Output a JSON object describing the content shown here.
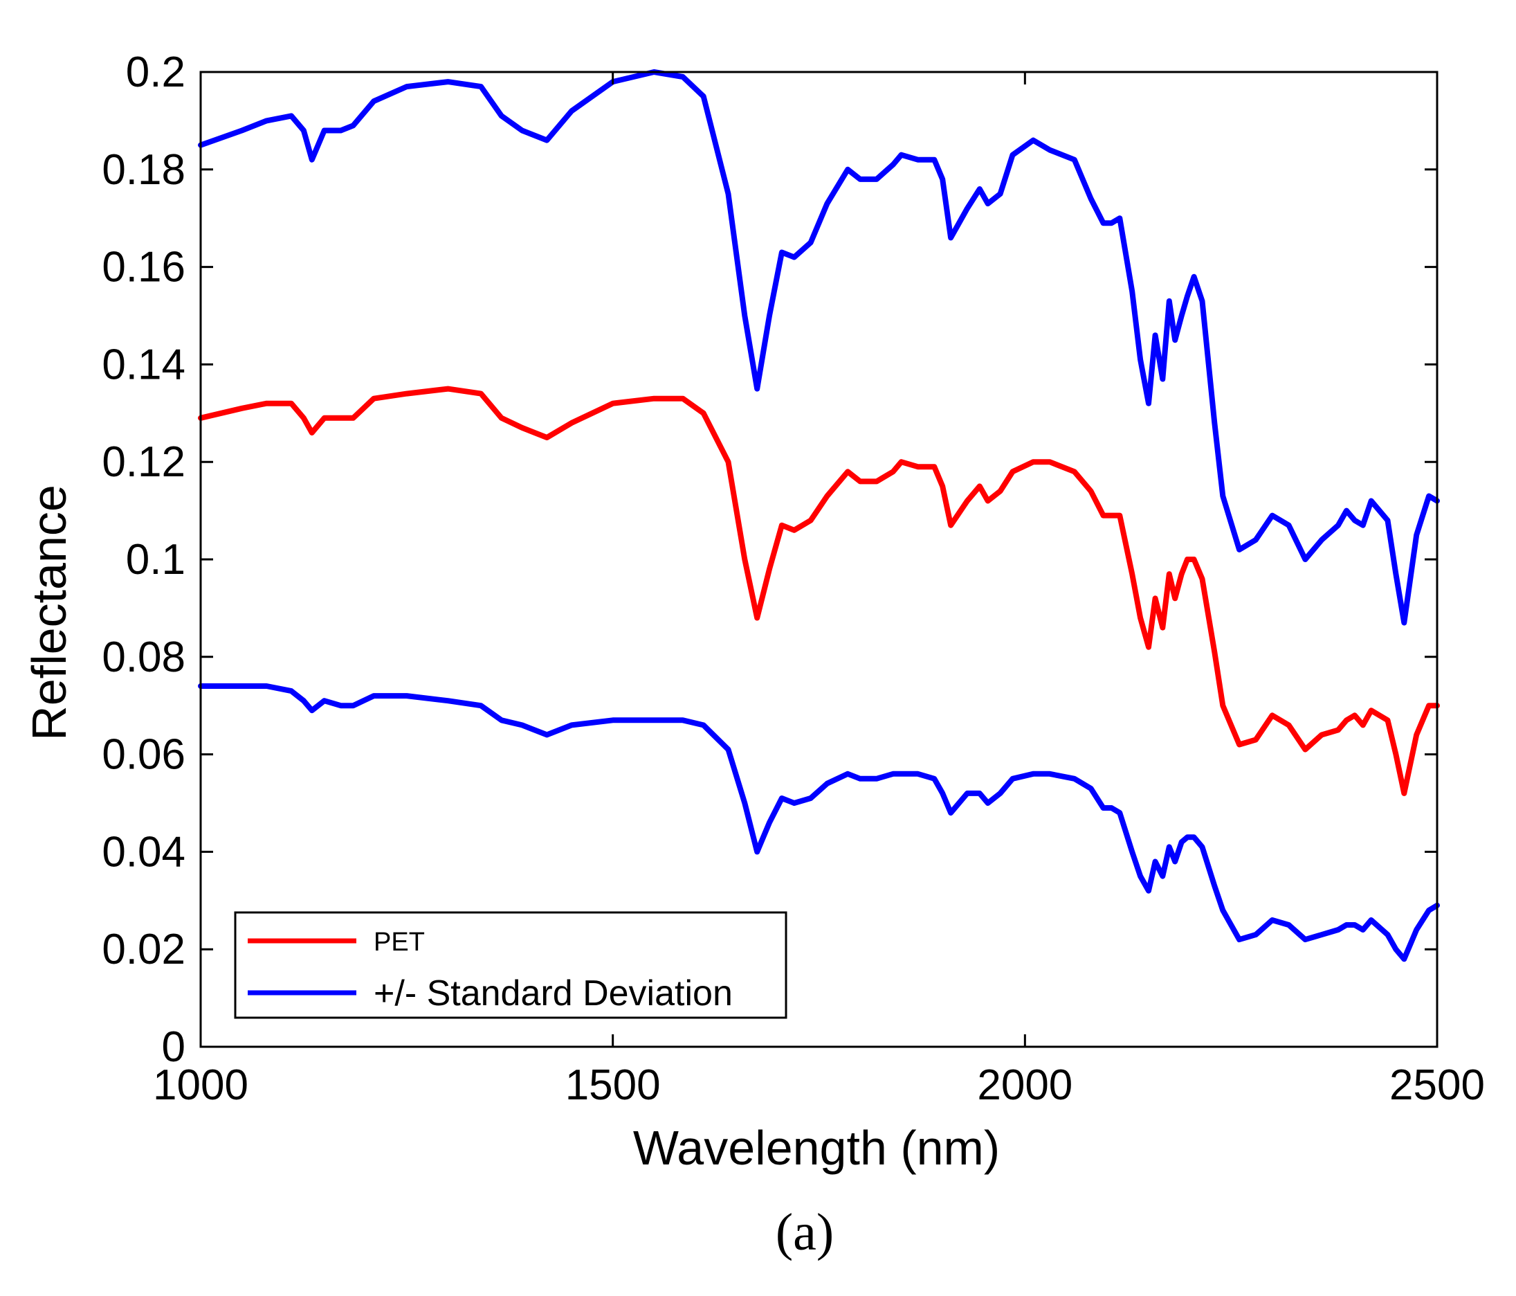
{
  "figure": {
    "caption": "(a)"
  },
  "chart_data": {
    "type": "line",
    "title": "",
    "xlabel": "Wavelength (nm)",
    "ylabel": "Reflectance",
    "xlim": [
      1000,
      2500
    ],
    "ylim": [
      0,
      0.2
    ],
    "xticks": [
      1000,
      1500,
      2000,
      2500
    ],
    "xtick_labels": [
      "1000",
      "1500",
      "2000",
      "2500"
    ],
    "yticks": [
      0,
      0.02,
      0.04,
      0.06,
      0.08,
      0.1,
      0.12,
      0.14,
      0.16,
      0.18,
      0.2
    ],
    "ytick_labels": [
      "0",
      "0.02",
      "0.04",
      "0.06",
      "0.08",
      "0.1",
      "0.12",
      "0.14",
      "0.16",
      "0.18",
      "0.2"
    ],
    "grid": false,
    "legend": {
      "position": "bottom-left",
      "entries": [
        {
          "label": "PET",
          "color": "#ff0000"
        },
        {
          "label": "+/- Standard Deviation",
          "color": "#0000ff"
        }
      ]
    },
    "series": [
      {
        "name": "+ Standard Deviation",
        "color": "#0000ff",
        "x": [
          1000,
          1050,
          1080,
          1110,
          1125,
          1135,
          1150,
          1170,
          1185,
          1210,
          1250,
          1300,
          1340,
          1365,
          1390,
          1420,
          1450,
          1500,
          1550,
          1585,
          1610,
          1640,
          1660,
          1675,
          1690,
          1705,
          1720,
          1740,
          1760,
          1785,
          1800,
          1820,
          1840,
          1850,
          1870,
          1890,
          1900,
          1910,
          1930,
          1945,
          1955,
          1970,
          1985,
          2010,
          2030,
          2060,
          2080,
          2095,
          2105,
          2115,
          2130,
          2140,
          2150,
          2158,
          2167,
          2175,
          2182,
          2190,
          2197,
          2205,
          2215,
          2230,
          2240,
          2260,
          2280,
          2300,
          2320,
          2340,
          2360,
          2380,
          2390,
          2400,
          2410,
          2420,
          2440,
          2450,
          2460,
          2475,
          2490,
          2500
        ],
        "y": [
          0.185,
          0.188,
          0.19,
          0.191,
          0.188,
          0.182,
          0.188,
          0.188,
          0.189,
          0.194,
          0.197,
          0.198,
          0.197,
          0.191,
          0.188,
          0.186,
          0.192,
          0.198,
          0.2,
          0.199,
          0.195,
          0.175,
          0.15,
          0.135,
          0.15,
          0.163,
          0.162,
          0.165,
          0.173,
          0.18,
          0.178,
          0.178,
          0.181,
          0.183,
          0.182,
          0.182,
          0.178,
          0.166,
          0.172,
          0.176,
          0.173,
          0.175,
          0.183,
          0.186,
          0.184,
          0.182,
          0.174,
          0.169,
          0.169,
          0.17,
          0.155,
          0.141,
          0.132,
          0.146,
          0.137,
          0.153,
          0.145,
          0.15,
          0.154,
          0.158,
          0.153,
          0.128,
          0.113,
          0.102,
          0.104,
          0.109,
          0.107,
          0.1,
          0.104,
          0.107,
          0.11,
          0.108,
          0.107,
          0.112,
          0.108,
          0.097,
          0.087,
          0.105,
          0.113,
          0.112
        ]
      },
      {
        "name": "PET",
        "color": "#ff0000",
        "x": [
          1000,
          1050,
          1080,
          1110,
          1125,
          1135,
          1150,
          1170,
          1185,
          1210,
          1250,
          1300,
          1340,
          1365,
          1390,
          1420,
          1450,
          1500,
          1550,
          1585,
          1610,
          1640,
          1660,
          1675,
          1690,
          1705,
          1720,
          1740,
          1760,
          1785,
          1800,
          1820,
          1840,
          1850,
          1870,
          1890,
          1900,
          1910,
          1930,
          1945,
          1955,
          1970,
          1985,
          2010,
          2030,
          2060,
          2080,
          2095,
          2105,
          2115,
          2130,
          2140,
          2150,
          2158,
          2167,
          2175,
          2182,
          2190,
          2197,
          2205,
          2215,
          2230,
          2240,
          2260,
          2280,
          2300,
          2320,
          2340,
          2360,
          2380,
          2390,
          2400,
          2410,
          2420,
          2440,
          2450,
          2460,
          2475,
          2490,
          2500
        ],
        "y": [
          0.129,
          0.131,
          0.132,
          0.132,
          0.129,
          0.126,
          0.129,
          0.129,
          0.129,
          0.133,
          0.134,
          0.135,
          0.134,
          0.129,
          0.127,
          0.125,
          0.128,
          0.132,
          0.133,
          0.133,
          0.13,
          0.12,
          0.1,
          0.088,
          0.098,
          0.107,
          0.106,
          0.108,
          0.113,
          0.118,
          0.116,
          0.116,
          0.118,
          0.12,
          0.119,
          0.119,
          0.115,
          0.107,
          0.112,
          0.115,
          0.112,
          0.114,
          0.118,
          0.12,
          0.12,
          0.118,
          0.114,
          0.109,
          0.109,
          0.109,
          0.097,
          0.088,
          0.082,
          0.092,
          0.086,
          0.097,
          0.092,
          0.097,
          0.1,
          0.1,
          0.096,
          0.081,
          0.07,
          0.062,
          0.063,
          0.068,
          0.066,
          0.061,
          0.064,
          0.065,
          0.067,
          0.068,
          0.066,
          0.069,
          0.067,
          0.06,
          0.052,
          0.064,
          0.07,
          0.07
        ]
      },
      {
        "name": "- Standard Deviation",
        "color": "#0000ff",
        "x": [
          1000,
          1050,
          1080,
          1110,
          1125,
          1135,
          1150,
          1170,
          1185,
          1210,
          1250,
          1300,
          1340,
          1365,
          1390,
          1420,
          1450,
          1500,
          1550,
          1585,
          1610,
          1640,
          1660,
          1675,
          1690,
          1705,
          1720,
          1740,
          1760,
          1785,
          1800,
          1820,
          1840,
          1850,
          1870,
          1890,
          1900,
          1910,
          1930,
          1945,
          1955,
          1970,
          1985,
          2010,
          2030,
          2060,
          2080,
          2095,
          2105,
          2115,
          2130,
          2140,
          2150,
          2158,
          2167,
          2175,
          2182,
          2190,
          2197,
          2205,
          2215,
          2230,
          2240,
          2260,
          2280,
          2300,
          2320,
          2340,
          2360,
          2380,
          2390,
          2400,
          2410,
          2420,
          2440,
          2450,
          2460,
          2475,
          2490,
          2500
        ],
        "y": [
          0.074,
          0.074,
          0.074,
          0.073,
          0.071,
          0.069,
          0.071,
          0.07,
          0.07,
          0.072,
          0.072,
          0.071,
          0.07,
          0.067,
          0.066,
          0.064,
          0.066,
          0.067,
          0.067,
          0.067,
          0.066,
          0.061,
          0.05,
          0.04,
          0.046,
          0.051,
          0.05,
          0.051,
          0.054,
          0.056,
          0.055,
          0.055,
          0.056,
          0.056,
          0.056,
          0.055,
          0.052,
          0.048,
          0.052,
          0.052,
          0.05,
          0.052,
          0.055,
          0.056,
          0.056,
          0.055,
          0.053,
          0.049,
          0.049,
          0.048,
          0.04,
          0.035,
          0.032,
          0.038,
          0.035,
          0.041,
          0.038,
          0.042,
          0.043,
          0.043,
          0.041,
          0.033,
          0.028,
          0.022,
          0.023,
          0.026,
          0.025,
          0.022,
          0.023,
          0.024,
          0.025,
          0.025,
          0.024,
          0.026,
          0.023,
          0.02,
          0.018,
          0.024,
          0.028,
          0.029
        ]
      }
    ]
  }
}
